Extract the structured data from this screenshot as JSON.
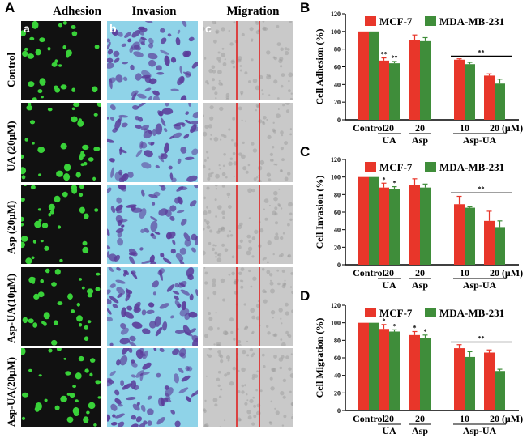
{
  "panel_A": {
    "letter": "A",
    "columns": [
      {
        "title": "Adhesion",
        "sub_letter": "a"
      },
      {
        "title": "Invasion",
        "sub_letter": "b"
      },
      {
        "title": "Migration",
        "sub_letter": "c"
      }
    ],
    "rows": [
      "Control",
      "UA (20μM)",
      "Asp (20μM)",
      "Asp-UA(10μM)",
      "Asp-UA(20μM)"
    ],
    "colors": {
      "adhesion_bg": "#111111",
      "adhesion_cell": "#39d239",
      "invasion_bg": "#8fd3e8",
      "invasion_cell": "#5b3c9a",
      "migration_bg": "#c9c9c9",
      "wound_line": "#e02020"
    }
  },
  "chart_data": [
    {
      "panel": "B",
      "type": "bar",
      "ylabel": "Cell Adhesion (%)",
      "ylim": [
        0,
        120
      ],
      "yticks": [
        "0",
        "20",
        "40",
        "60",
        "80",
        "100",
        "120"
      ],
      "categories": [
        "Control",
        "20",
        "20",
        "10",
        "20"
      ],
      "unit_label": "(μM)",
      "group_labels": [
        {
          "label": "UA",
          "from": 1,
          "to": 1
        },
        {
          "label": "Asp",
          "from": 2,
          "to": 2
        },
        {
          "label": "Asp-UA",
          "from": 3,
          "to": 4
        }
      ],
      "series": [
        {
          "name": "MCF-7",
          "color": "#e8362a",
          "values": [
            100,
            67,
            90,
            68,
            50
          ],
          "errors": [
            0,
            3,
            6,
            1,
            2
          ],
          "marks": [
            "",
            "**",
            "",
            "",
            ""
          ]
        },
        {
          "name": "MDA-MB-231",
          "color": "#3f8d3a",
          "values": [
            100,
            64,
            89,
            63,
            41
          ],
          "errors": [
            0,
            2,
            4,
            2,
            5
          ],
          "marks": [
            "",
            "**",
            "",
            "",
            ""
          ]
        }
      ],
      "bracket": {
        "from": 3,
        "to": 4,
        "y": 72,
        "label": "**"
      },
      "legend": "top"
    },
    {
      "panel": "C",
      "type": "bar",
      "ylabel": "Cell Invasion (%)",
      "ylim": [
        0,
        120
      ],
      "yticks": [
        "0",
        "20",
        "40",
        "60",
        "80",
        "100",
        "120"
      ],
      "categories": [
        "Control",
        "20",
        "20",
        "10",
        "20"
      ],
      "unit_label": "(μM)",
      "group_labels": [
        {
          "label": "UA",
          "from": 1,
          "to": 1
        },
        {
          "label": "Asp",
          "from": 2,
          "to": 2
        },
        {
          "label": "Asp-UA",
          "from": 3,
          "to": 4
        }
      ],
      "series": [
        {
          "name": "MCF-7",
          "color": "#e8362a",
          "values": [
            100,
            88,
            91,
            69,
            50
          ],
          "errors": [
            0,
            5,
            7,
            9,
            11
          ],
          "marks": [
            "",
            "*",
            "",
            "",
            ""
          ]
        },
        {
          "name": "MDA-MB-231",
          "color": "#3f8d3a",
          "values": [
            100,
            86,
            88,
            65,
            43
          ],
          "errors": [
            0,
            3,
            4,
            1,
            7
          ],
          "marks": [
            "",
            "*",
            "",
            "",
            ""
          ]
        }
      ],
      "bracket": {
        "from": 3,
        "to": 4,
        "y": 82,
        "label": "**"
      },
      "legend": "top"
    },
    {
      "panel": "D",
      "type": "bar",
      "ylabel": "Cell Migration (%)",
      "ylim": [
        0,
        120
      ],
      "yticks": [
        "0",
        "20",
        "40",
        "60",
        "80",
        "100",
        "120"
      ],
      "categories": [
        "Control",
        "20",
        "20",
        "10",
        "20"
      ],
      "unit_label": "(μM)",
      "group_labels": [
        {
          "label": "UA",
          "from": 1,
          "to": 1
        },
        {
          "label": "Asp",
          "from": 2,
          "to": 2
        },
        {
          "label": "Asp-UA",
          "from": 3,
          "to": 4
        }
      ],
      "series": [
        {
          "name": "MCF-7",
          "color": "#e8362a",
          "values": [
            100,
            93,
            86,
            71,
            66
          ],
          "errors": [
            0,
            5,
            4,
            4,
            3
          ],
          "marks": [
            "",
            "*",
            "*",
            "",
            ""
          ]
        },
        {
          "name": "MDA-MB-231",
          "color": "#3f8d3a",
          "values": [
            100,
            90,
            83,
            61,
            45
          ],
          "errors": [
            0,
            2,
            3,
            6,
            2
          ],
          "marks": [
            "",
            "*",
            "*",
            "",
            ""
          ]
        }
      ],
      "bracket": {
        "from": 3,
        "to": 4,
        "y": 78,
        "label": "**"
      },
      "legend": "top"
    }
  ]
}
